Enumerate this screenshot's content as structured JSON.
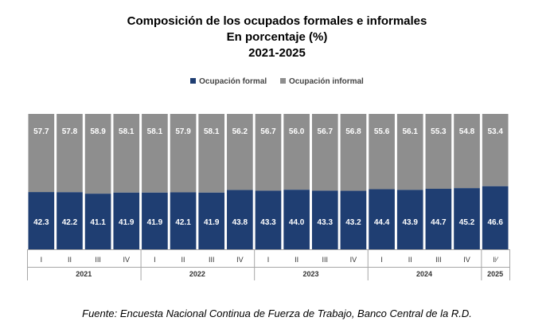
{
  "colors": {
    "formal": "#1f3e72",
    "informal": "#8e8e8e",
    "label": "#ffffff",
    "axis": "#a6a6a6"
  },
  "chart_data": {
    "type": "bar",
    "stacked": true,
    "title": "Composición de los ocupados formales e informales",
    "subtitle": "En porcentaje (%)",
    "period": "2021-2025",
    "ylim": [
      0,
      100
    ],
    "grid": false,
    "legend_position": "top-center",
    "categories": [
      "I",
      "II",
      "III",
      "IV",
      "I",
      "II",
      "III",
      "IV",
      "I",
      "II",
      "III",
      "IV",
      "I",
      "II",
      "III",
      "IV",
      "Iⁱ⁄"
    ],
    "groups": [
      {
        "label": "2021",
        "count": 4
      },
      {
        "label": "2022",
        "count": 4
      },
      {
        "label": "2023",
        "count": 4
      },
      {
        "label": "2024",
        "count": 4
      },
      {
        "label": "2025",
        "count": 1
      }
    ],
    "series": [
      {
        "name": "Ocupación formal",
        "values": [
          42.3,
          42.2,
          41.1,
          41.9,
          41.9,
          42.1,
          41.9,
          43.8,
          43.3,
          44.0,
          43.3,
          43.2,
          44.4,
          43.9,
          44.7,
          45.2,
          46.6
        ]
      },
      {
        "name": "Ocupación informal",
        "values": [
          57.7,
          57.8,
          58.9,
          58.1,
          58.1,
          57.9,
          58.1,
          56.2,
          56.7,
          56.0,
          56.7,
          56.8,
          55.6,
          56.1,
          55.3,
          54.8,
          53.4
        ]
      }
    ],
    "value_labels": {
      "formal": [
        "42.3",
        "42.2",
        "41.1",
        "41.9",
        "41.9",
        "42.1",
        "41.9",
        "43.8",
        "43.3",
        "44.0",
        "43.3",
        "43.2",
        "44.4",
        "43.9",
        "44.7",
        "45.2",
        "46.6"
      ],
      "informal": [
        "57.7",
        "57.8",
        "58.9",
        "58.1",
        "58.1",
        "57.9",
        "58.1",
        "56.2",
        "56.7",
        "56.0",
        "56.7",
        "56.8",
        "55.6",
        "56.1",
        "55.3",
        "54.8",
        "53.4"
      ]
    }
  },
  "source": "Fuente: Encuesta Nacional Continua de Fuerza de Trabajo, Banco Central de la R.D."
}
